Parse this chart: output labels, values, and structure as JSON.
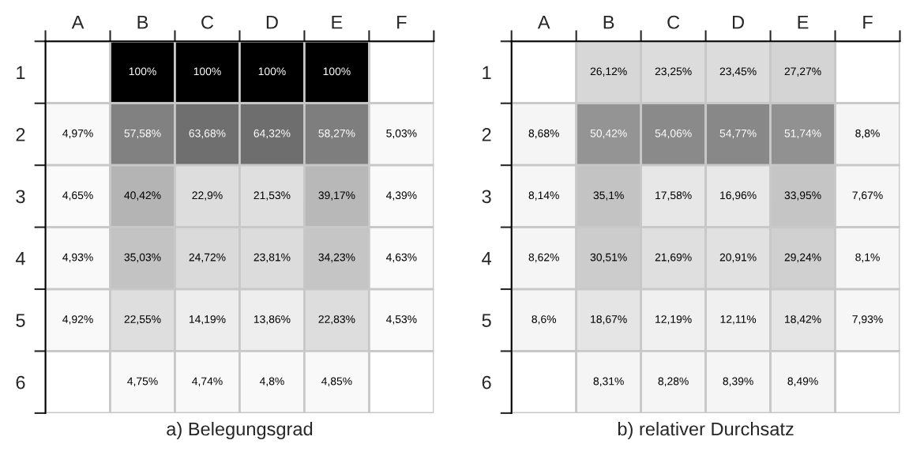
{
  "chart_data": [
    {
      "type": "heatmap",
      "title": "a) Belegungsgrad",
      "categories": [
        "A",
        "B",
        "C",
        "D",
        "E",
        "F"
      ],
      "y_categories": [
        "1",
        "2",
        "3",
        "4",
        "5",
        "6"
      ],
      "cells": [
        [
          null,
          100,
          100,
          100,
          100,
          null
        ],
        [
          4.97,
          57.58,
          63.68,
          64.32,
          58.27,
          5.03
        ],
        [
          4.65,
          40.42,
          22.9,
          21.53,
          39.17,
          4.39
        ],
        [
          4.93,
          35.03,
          24.72,
          23.81,
          34.23,
          4.63
        ],
        [
          4.92,
          22.55,
          14.19,
          13.86,
          22.83,
          4.53
        ],
        [
          null,
          4.75,
          4.74,
          4.8,
          4.85,
          null
        ]
      ],
      "cell_labels": [
        [
          null,
          "100%",
          "100%",
          "100%",
          "100%",
          null
        ],
        [
          "4,97%",
          "57,58%",
          "63,68%",
          "64,32%",
          "58,27%",
          "5,03%"
        ],
        [
          "4,65%",
          "40,42%",
          "22,9%",
          "21,53%",
          "39,17%",
          "4,39%"
        ],
        [
          "4,93%",
          "35,03%",
          "24,72%",
          "23,81%",
          "34,23%",
          "4,63%"
        ],
        [
          "4,92%",
          "22,55%",
          "14,19%",
          "13,86%",
          "22,83%",
          "4,53%"
        ],
        [
          null,
          "4,75%",
          "4,74%",
          "4,8%",
          "4,85%",
          null
        ]
      ]
    },
    {
      "type": "heatmap",
      "title": "b) relativer Durchsatz",
      "categories": [
        "A",
        "B",
        "C",
        "D",
        "E",
        "F"
      ],
      "y_categories": [
        "1",
        "2",
        "3",
        "4",
        "5",
        "6"
      ],
      "cells": [
        [
          null,
          26.12,
          23.25,
          23.45,
          27.27,
          null
        ],
        [
          8.68,
          50.42,
          54.06,
          54.77,
          51.74,
          8.8
        ],
        [
          8.14,
          35.1,
          17.58,
          16.96,
          33.95,
          7.67
        ],
        [
          8.62,
          30.51,
          21.69,
          20.91,
          29.24,
          8.1
        ],
        [
          8.6,
          18.67,
          12.19,
          12.11,
          18.42,
          7.93
        ],
        [
          null,
          8.31,
          8.28,
          8.39,
          8.49,
          null
        ]
      ],
      "cell_labels": [
        [
          null,
          "26,12%",
          "23,25%",
          "23,45%",
          "27,27%",
          null
        ],
        [
          "8,68%",
          "50,42%",
          "54,06%",
          "54,77%",
          "51,74%",
          "8,8%"
        ],
        [
          "8,14%",
          "35,1%",
          "17,58%",
          "16,96%",
          "33,95%",
          "7,67%"
        ],
        [
          "8,62%",
          "30,51%",
          "21,69%",
          "20,91%",
          "29,24%",
          "8,1%"
        ],
        [
          "8,6%",
          "18,67%",
          "12,19%",
          "12,11%",
          "18,42%",
          "7,93%"
        ],
        [
          null,
          "8,31%",
          "8,28%",
          "8,39%",
          "8,49%",
          null
        ]
      ]
    }
  ]
}
